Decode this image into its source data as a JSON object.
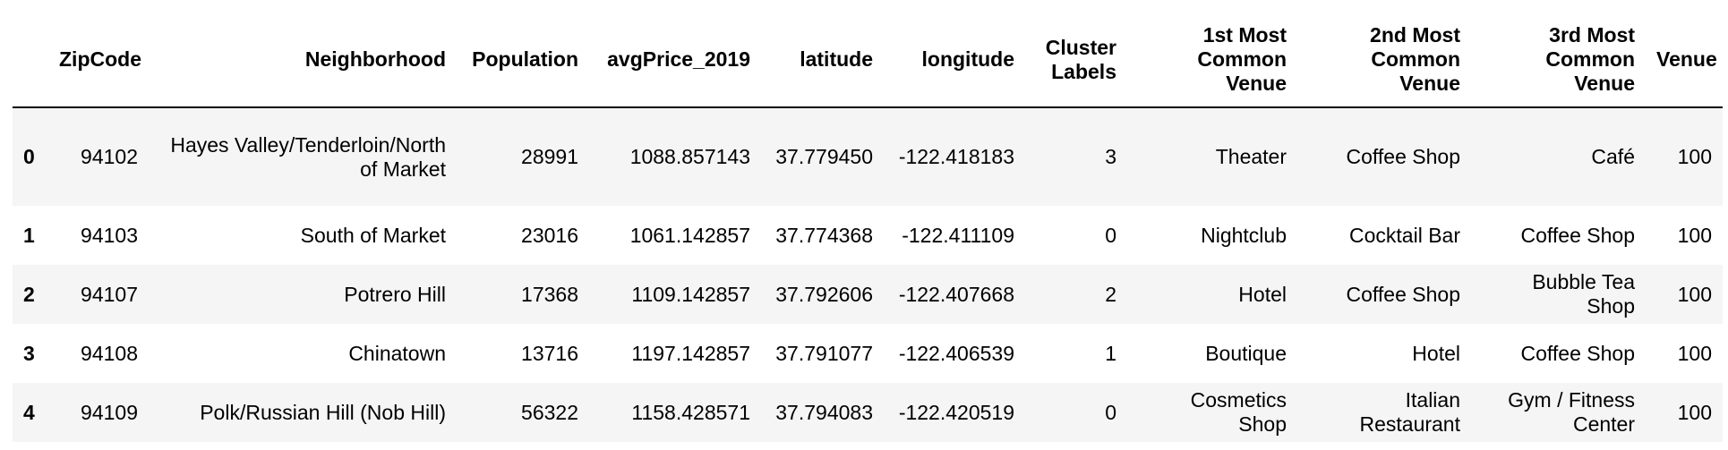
{
  "table": {
    "columns": [
      "ZipCode",
      "Neighborhood",
      "Population",
      "avgPrice_2019",
      "latitude",
      "longitude",
      "Cluster Labels",
      "1st Most Common Venue",
      "2nd Most Common Venue",
      "3rd Most Common Venue",
      "Venue"
    ],
    "rows": [
      {
        "index": "0",
        "ZipCode": "94102",
        "Neighborhood": "Hayes Valley/Tenderloin/North of Market",
        "Population": "28991",
        "avgPrice_2019": "1088.857143",
        "latitude": "37.779450",
        "longitude": "-122.418183",
        "Cluster Labels": "3",
        "venue1": "Theater",
        "venue2": "Coffee Shop",
        "venue3": "Café",
        "Venue": "100"
      },
      {
        "index": "1",
        "ZipCode": "94103",
        "Neighborhood": "South of Market",
        "Population": "23016",
        "avgPrice_2019": "1061.142857",
        "latitude": "37.774368",
        "longitude": "-122.411109",
        "Cluster Labels": "0",
        "venue1": "Nightclub",
        "venue2": "Cocktail Bar",
        "venue3": "Coffee Shop",
        "Venue": "100"
      },
      {
        "index": "2",
        "ZipCode": "94107",
        "Neighborhood": "Potrero Hill",
        "Population": "17368",
        "avgPrice_2019": "1109.142857",
        "latitude": "37.792606",
        "longitude": "-122.407668",
        "Cluster Labels": "2",
        "venue1": "Hotel",
        "venue2": "Coffee Shop",
        "venue3": "Bubble Tea Shop",
        "Venue": "100"
      },
      {
        "index": "3",
        "ZipCode": "94108",
        "Neighborhood": "Chinatown",
        "Population": "13716",
        "avgPrice_2019": "1197.142857",
        "latitude": "37.791077",
        "longitude": "-122.406539",
        "Cluster Labels": "1",
        "venue1": "Boutique",
        "venue2": "Hotel",
        "venue3": "Coffee Shop",
        "Venue": "100"
      },
      {
        "index": "4",
        "ZipCode": "94109",
        "Neighborhood": "Polk/Russian Hill (Nob Hill)",
        "Population": "56322",
        "avgPrice_2019": "1158.428571",
        "latitude": "37.794083",
        "longitude": "-122.420519",
        "Cluster Labels": "0",
        "venue1": "Cosmetics Shop",
        "venue2": "Italian Restaurant",
        "venue3": "Gym / Fitness Center",
        "Venue": "100"
      }
    ]
  },
  "colors": {
    "odd_row_bg": "#f5f5f5",
    "even_row_bg": "#ffffff",
    "header_rule": "#000000",
    "text": "#000000"
  }
}
